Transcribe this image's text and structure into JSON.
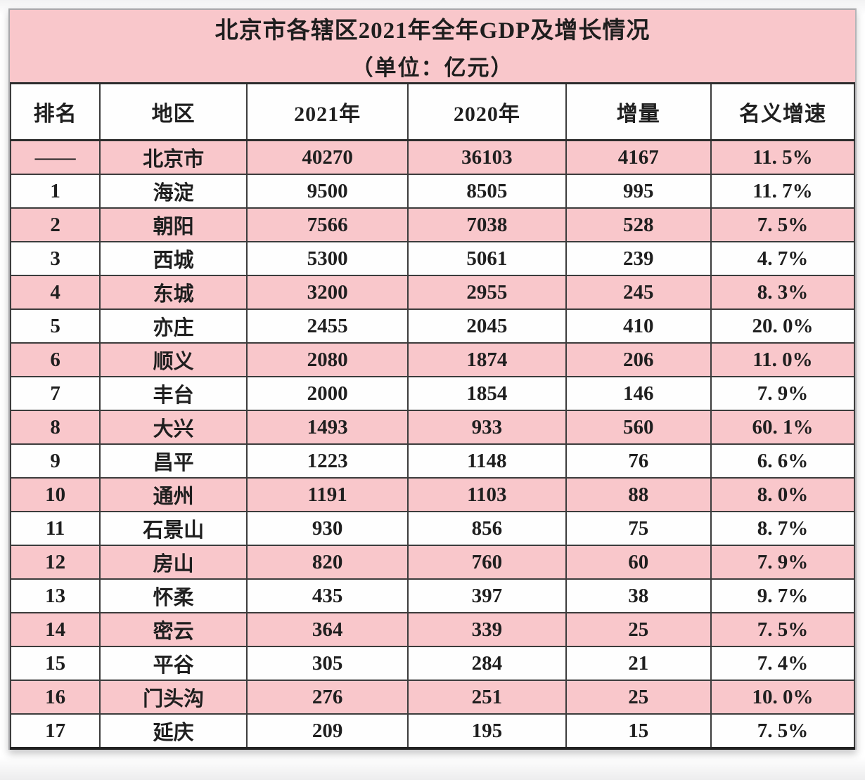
{
  "title": {
    "line1": "北京市各辖区2021年全年GDP及增长情况",
    "line2": "（单位：亿元）"
  },
  "colors": {
    "row_pink": "#f9c7cb",
    "row_white": "#fefefe",
    "border_dark": "#3c3c3c",
    "text": "#1f1f1f"
  },
  "chart_data": {
    "type": "table",
    "title": "北京市各辖区2021年全年GDP及增长情况",
    "unit": "（单位：亿元）",
    "columns": [
      "排名",
      "地区",
      "2021年",
      "2020年",
      "增量",
      "名义增速"
    ],
    "rows": [
      [
        "——",
        "北京市",
        "40270",
        "36103",
        "4167",
        "11. 5%"
      ],
      [
        "1",
        "海淀",
        "9500",
        "8505",
        "995",
        "11. 7%"
      ],
      [
        "2",
        "朝阳",
        "7566",
        "7038",
        "528",
        "7. 5%"
      ],
      [
        "3",
        "西城",
        "5300",
        "5061",
        "239",
        "4. 7%"
      ],
      [
        "4",
        "东城",
        "3200",
        "2955",
        "245",
        "8. 3%"
      ],
      [
        "5",
        "亦庄",
        "2455",
        "2045",
        "410",
        "20. 0%"
      ],
      [
        "6",
        "顺义",
        "2080",
        "1874",
        "206",
        "11. 0%"
      ],
      [
        "7",
        "丰台",
        "2000",
        "1854",
        "146",
        "7. 9%"
      ],
      [
        "8",
        "大兴",
        "1493",
        "933",
        "560",
        "60. 1%"
      ],
      [
        "9",
        "昌平",
        "1223",
        "1148",
        "76",
        "6. 6%"
      ],
      [
        "10",
        "通州",
        "1191",
        "1103",
        "88",
        "8. 0%"
      ],
      [
        "11",
        "石景山",
        "930",
        "856",
        "75",
        "8. 7%"
      ],
      [
        "12",
        "房山",
        "820",
        "760",
        "60",
        "7. 9%"
      ],
      [
        "13",
        "怀柔",
        "435",
        "397",
        "38",
        "9. 7%"
      ],
      [
        "14",
        "密云",
        "364",
        "339",
        "25",
        "7. 5%"
      ],
      [
        "15",
        "平谷",
        "305",
        "284",
        "21",
        "7. 4%"
      ],
      [
        "16",
        "门头沟",
        "276",
        "251",
        "25",
        "10. 0%"
      ],
      [
        "17",
        "延庆",
        "209",
        "195",
        "15",
        "7. 5%"
      ]
    ],
    "growth_pct_numeric": [
      11.5,
      11.7,
      7.5,
      4.7,
      8.3,
      20.0,
      11.0,
      7.9,
      60.1,
      6.6,
      8.0,
      8.7,
      7.9,
      9.7,
      7.5,
      7.4,
      10.0,
      7.5
    ]
  }
}
